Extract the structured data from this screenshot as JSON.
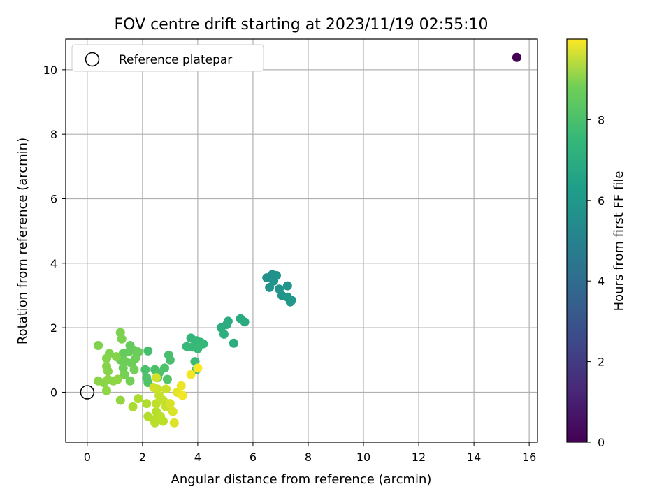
{
  "chart_data": {
    "type": "scatter",
    "title": "FOV centre drift starting at 2023/11/19 02:55:10",
    "xlabel": "Angular distance from reference (arcmin)",
    "ylabel": "Rotation from reference (arcmin)",
    "xlim": [
      -0.78,
      16.3
    ],
    "ylim": [
      -1.55,
      10.95
    ],
    "xticks": [
      0,
      2,
      4,
      6,
      8,
      10,
      12,
      14,
      16
    ],
    "yticks": [
      0,
      2,
      4,
      6,
      8,
      10
    ],
    "grid": true,
    "legend": {
      "position": "top-left",
      "entries": [
        {
          "label": "Reference platepar",
          "marker": "open-circle",
          "color": "#000000"
        }
      ]
    },
    "reference_point": {
      "x": 0,
      "y": 0
    },
    "colorbar": {
      "label": "Hours from first FF file",
      "colormap": "viridis",
      "range": [
        0,
        10
      ],
      "ticks": [
        0,
        2,
        4,
        6,
        8
      ]
    },
    "points": [
      {
        "x": 15.55,
        "y": 10.38,
        "h": 0.0
      },
      {
        "x": 6.7,
        "y": 3.65,
        "h": 5.05
      },
      {
        "x": 6.5,
        "y": 3.55,
        "h": 5.05
      },
      {
        "x": 6.85,
        "y": 3.62,
        "h": 5.1
      },
      {
        "x": 6.75,
        "y": 3.45,
        "h": 5.1
      },
      {
        "x": 6.6,
        "y": 3.25,
        "h": 5.15
      },
      {
        "x": 6.95,
        "y": 3.2,
        "h": 5.15
      },
      {
        "x": 7.25,
        "y": 3.3,
        "h": 5.2
      },
      {
        "x": 7.05,
        "y": 3.0,
        "h": 5.2
      },
      {
        "x": 7.25,
        "y": 2.95,
        "h": 5.25
      },
      {
        "x": 7.35,
        "y": 2.8,
        "h": 5.3
      },
      {
        "x": 7.4,
        "y": 2.85,
        "h": 5.3
      },
      {
        "x": 5.55,
        "y": 2.28,
        "h": 6.1
      },
      {
        "x": 5.7,
        "y": 2.18,
        "h": 6.1
      },
      {
        "x": 5.1,
        "y": 2.2,
        "h": 6.15
      },
      {
        "x": 5.05,
        "y": 2.1,
        "h": 6.2
      },
      {
        "x": 4.85,
        "y": 2.0,
        "h": 6.2
      },
      {
        "x": 4.95,
        "y": 1.8,
        "h": 6.25
      },
      {
        "x": 5.3,
        "y": 1.52,
        "h": 6.25
      },
      {
        "x": 3.75,
        "y": 1.68,
        "h": 6.6
      },
      {
        "x": 3.95,
        "y": 1.6,
        "h": 6.6
      },
      {
        "x": 4.1,
        "y": 1.55,
        "h": 6.65
      },
      {
        "x": 4.2,
        "y": 1.5,
        "h": 6.65
      },
      {
        "x": 3.6,
        "y": 1.42,
        "h": 6.7
      },
      {
        "x": 3.8,
        "y": 1.4,
        "h": 6.7
      },
      {
        "x": 4.0,
        "y": 1.35,
        "h": 6.75
      },
      {
        "x": 3.9,
        "y": 0.95,
        "h": 6.8
      },
      {
        "x": 3.95,
        "y": 0.7,
        "h": 6.85
      },
      {
        "x": 2.2,
        "y": 1.28,
        "h": 7.0
      },
      {
        "x": 2.95,
        "y": 1.15,
        "h": 7.05
      },
      {
        "x": 3.0,
        "y": 1.0,
        "h": 7.05
      },
      {
        "x": 2.1,
        "y": 0.7,
        "h": 7.1
      },
      {
        "x": 2.45,
        "y": 0.7,
        "h": 7.1
      },
      {
        "x": 2.8,
        "y": 0.75,
        "h": 7.15
      },
      {
        "x": 2.6,
        "y": 0.6,
        "h": 7.15
      },
      {
        "x": 2.15,
        "y": 0.45,
        "h": 7.2
      },
      {
        "x": 2.2,
        "y": 0.3,
        "h": 7.2
      },
      {
        "x": 2.55,
        "y": 0.45,
        "h": 7.25
      },
      {
        "x": 2.9,
        "y": 0.4,
        "h": 7.25
      },
      {
        "x": 1.55,
        "y": 1.45,
        "h": 7.6
      },
      {
        "x": 1.3,
        "y": 1.2,
        "h": 7.6
      },
      {
        "x": 1.5,
        "y": 1.25,
        "h": 7.65
      },
      {
        "x": 1.7,
        "y": 1.3,
        "h": 7.65
      },
      {
        "x": 1.85,
        "y": 1.25,
        "h": 7.7
      },
      {
        "x": 1.2,
        "y": 1.0,
        "h": 7.7
      },
      {
        "x": 1.4,
        "y": 0.95,
        "h": 7.75
      },
      {
        "x": 1.6,
        "y": 0.9,
        "h": 7.75
      },
      {
        "x": 1.75,
        "y": 1.05,
        "h": 7.8
      },
      {
        "x": 1.3,
        "y": 0.75,
        "h": 7.8
      },
      {
        "x": 1.7,
        "y": 0.7,
        "h": 7.85
      },
      {
        "x": 1.55,
        "y": 0.35,
        "h": 7.85
      },
      {
        "x": 1.35,
        "y": 0.55,
        "h": 7.9
      },
      {
        "x": 1.2,
        "y": 1.85,
        "h": 8.0
      },
      {
        "x": 1.25,
        "y": 1.65,
        "h": 8.0
      },
      {
        "x": 0.4,
        "y": 1.45,
        "h": 8.05
      },
      {
        "x": 0.8,
        "y": 1.2,
        "h": 8.05
      },
      {
        "x": 0.7,
        "y": 1.05,
        "h": 8.1
      },
      {
        "x": 1.05,
        "y": 1.1,
        "h": 8.1
      },
      {
        "x": 0.7,
        "y": 0.8,
        "h": 8.15
      },
      {
        "x": 0.75,
        "y": 0.65,
        "h": 8.15
      },
      {
        "x": 0.4,
        "y": 0.35,
        "h": 8.2
      },
      {
        "x": 0.6,
        "y": 0.3,
        "h": 8.2
      },
      {
        "x": 0.75,
        "y": 0.4,
        "h": 8.25
      },
      {
        "x": 0.95,
        "y": 0.35,
        "h": 8.25
      },
      {
        "x": 1.1,
        "y": 0.4,
        "h": 8.3
      },
      {
        "x": 0.7,
        "y": 0.05,
        "h": 8.3
      },
      {
        "x": 1.2,
        "y": -0.25,
        "h": 8.35
      },
      {
        "x": 1.65,
        "y": -0.45,
        "h": 8.7
      },
      {
        "x": 1.85,
        "y": -0.2,
        "h": 8.75
      },
      {
        "x": 2.15,
        "y": -0.35,
        "h": 8.8
      },
      {
        "x": 2.2,
        "y": -0.75,
        "h": 8.85
      },
      {
        "x": 2.4,
        "y": -0.85,
        "h": 8.9
      },
      {
        "x": 2.5,
        "y": -0.6,
        "h": 8.9
      },
      {
        "x": 2.45,
        "y": -0.95,
        "h": 8.95
      },
      {
        "x": 2.65,
        "y": -0.75,
        "h": 9.0
      },
      {
        "x": 2.75,
        "y": -0.9,
        "h": 9.0
      },
      {
        "x": 2.5,
        "y": -0.35,
        "h": 9.05
      },
      {
        "x": 2.6,
        "y": -0.1,
        "h": 9.1
      },
      {
        "x": 2.75,
        "y": -0.25,
        "h": 9.1
      },
      {
        "x": 2.85,
        "y": -0.45,
        "h": 9.15
      },
      {
        "x": 2.55,
        "y": 0.1,
        "h": 9.2
      },
      {
        "x": 2.85,
        "y": 0.1,
        "h": 9.25
      },
      {
        "x": 2.4,
        "y": 0.15,
        "h": 9.3
      },
      {
        "x": 2.5,
        "y": 0.45,
        "h": 9.35
      },
      {
        "x": 3.0,
        "y": -0.35,
        "h": 9.4
      },
      {
        "x": 3.1,
        "y": -0.6,
        "h": 9.45
      },
      {
        "x": 3.15,
        "y": -0.95,
        "h": 9.5
      },
      {
        "x": 3.25,
        "y": 0.0,
        "h": 9.6
      },
      {
        "x": 3.4,
        "y": 0.2,
        "h": 9.7
      },
      {
        "x": 3.45,
        "y": -0.1,
        "h": 9.8
      },
      {
        "x": 3.75,
        "y": 0.55,
        "h": 9.85
      },
      {
        "x": 4.0,
        "y": 0.75,
        "h": 9.95
      }
    ]
  }
}
